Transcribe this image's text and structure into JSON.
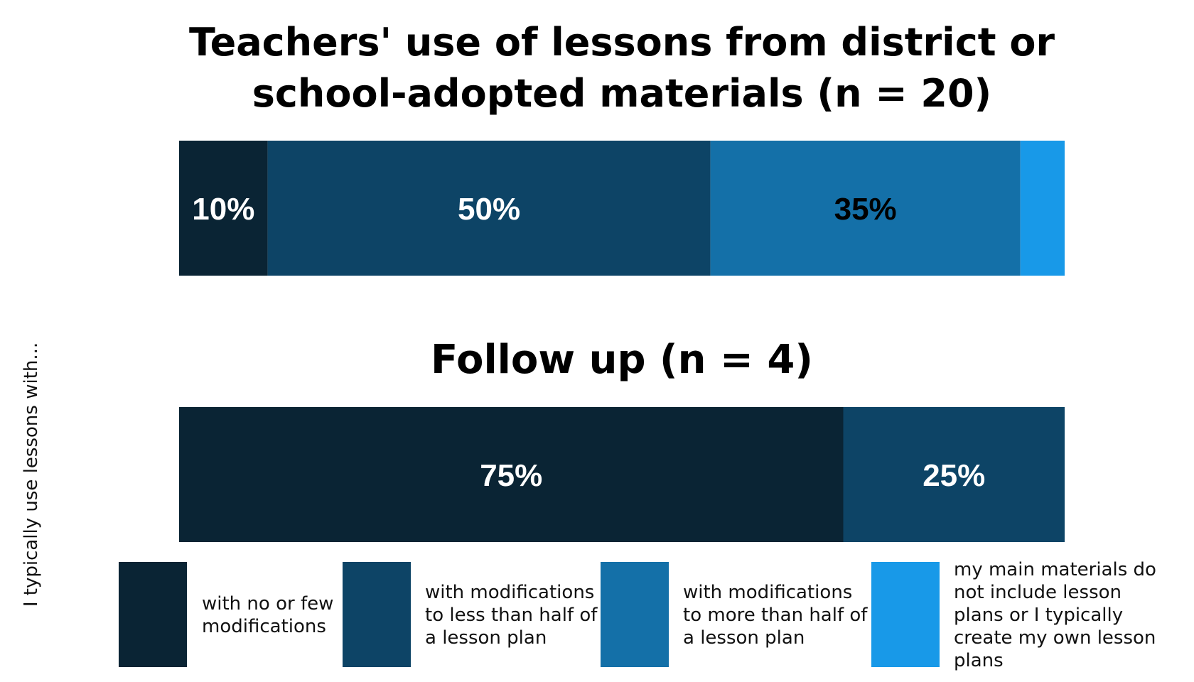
{
  "chart_data": {
    "type": "bar",
    "orientation": "horizontal",
    "stacked": true,
    "percent": true,
    "ylabel": "I typically use lessons with...",
    "grid": false,
    "legend_placement": "bottom",
    "categories": [
      "with no or few modifications",
      "with modifications to less than half of a lesson plan",
      "with modifications to more than half of a lesson plan",
      "my main materials do not include lesson plans or I typically create my own lesson plans"
    ],
    "colors": [
      "#0a2434",
      "#0d4466",
      "#1470a8",
      "#1899e8"
    ],
    "panels": [
      {
        "title_lines": [
          "Teachers' use of lessons from district or",
          "school-adopted materials (n = 20)"
        ],
        "values": [
          10,
          50,
          35,
          5
        ],
        "labels": [
          "10%",
          "50%",
          "35%",
          ""
        ],
        "label_colors": [
          "#ffffff",
          "#ffffff",
          "#000000",
          "#ffffff"
        ]
      },
      {
        "title_lines": [
          "Follow up (n = 4)"
        ],
        "values": [
          75,
          25,
          0,
          0
        ],
        "labels": [
          "75%",
          "25%",
          "",
          ""
        ],
        "label_colors": [
          "#ffffff",
          "#ffffff",
          "#000000",
          "#ffffff"
        ]
      }
    ],
    "legend_lines": [
      [
        "with no or few",
        "modifications"
      ],
      [
        "with modifications",
        "to less than half of",
        "a lesson plan"
      ],
      [
        "with modifications",
        "to more than half of",
        "a lesson plan"
      ],
      [
        "my main materials do",
        "not include lesson",
        "plans or I typically",
        "create my own lesson",
        "plans"
      ]
    ]
  }
}
